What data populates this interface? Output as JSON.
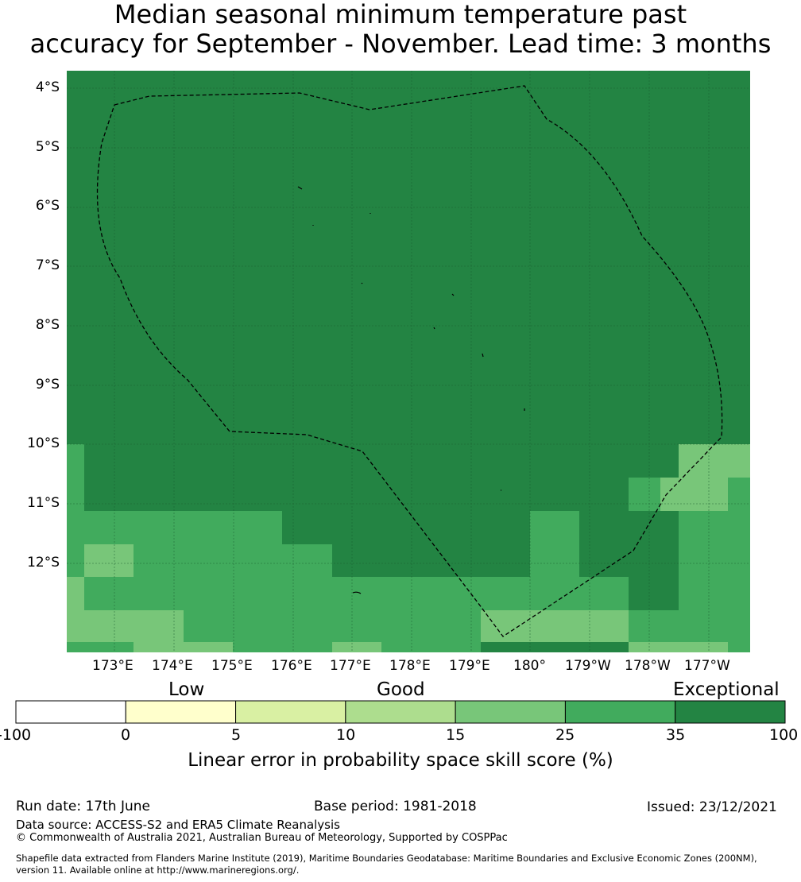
{
  "title": {
    "line1": "Median seasonal minimum temperature past",
    "line2": "accuracy for September - November. Lead time: 3 months"
  },
  "map": {
    "lat_labels": [
      "4°S",
      "5°S",
      "6°S",
      "7°S",
      "8°S",
      "9°S",
      "10°S",
      "11°S",
      "12°S"
    ],
    "lon_labels": [
      "173°E",
      "174°E",
      "175°E",
      "176°E",
      "177°E",
      "178°E",
      "179°E",
      "180°",
      "179°W",
      "178°W",
      "177°W"
    ],
    "colors": {
      "c15_25": "#78c679",
      "c25_35": "#41ab5d",
      "c35_100": "#238443",
      "c10_15": "#addd8e"
    }
  },
  "colorbar": {
    "categories": [
      "Low",
      "Good",
      "Exceptional"
    ],
    "ticks": [
      "-100",
      "0",
      "5",
      "10",
      "15",
      "25",
      "35",
      "100"
    ],
    "colors": [
      "#ffffff",
      "#ffffcc",
      "#d9f0a3",
      "#addd8e",
      "#78c679",
      "#41ab5d",
      "#238443"
    ],
    "title": "Linear error in probability space skill score (%)"
  },
  "footer": {
    "run_date": "Run date: 17th June",
    "base_period": "Base period: 1981-2018",
    "issued": "Issued: 23/12/2021",
    "data_source": "Data source: ACCESS-S2 and ERA5 Climate Reanalysis",
    "copyright": "© Commonwealth of Australia 2021, Australian Bureau of Meteorology, Supported by COSPPac",
    "shapefile1": "Shapefile data extracted from Flanders Marine Institute (2019), Maritime Boundaries Geodatabase: Maritime Boundaries and Exclusive Economic Zones (200NM),",
    "shapefile2": "version 11. Available online at http://www.marineregions.org/."
  }
}
